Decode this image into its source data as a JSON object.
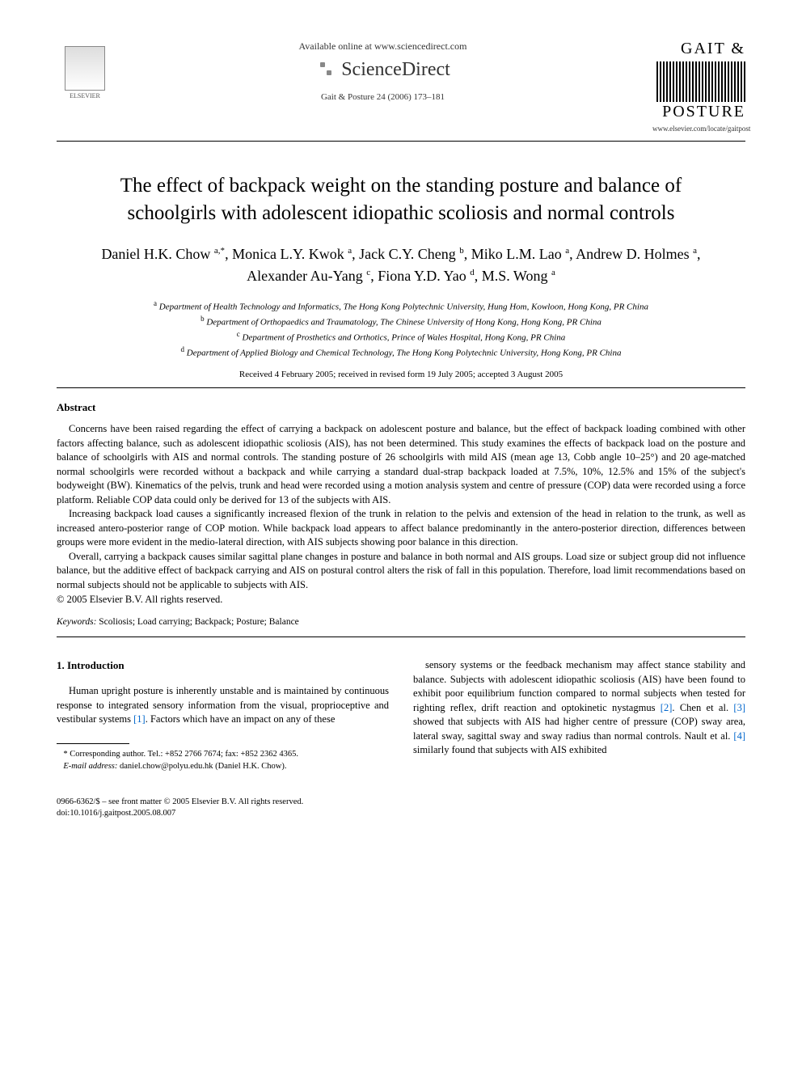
{
  "header": {
    "available_online": "Available online at www.sciencedirect.com",
    "sciencedirect": "ScienceDirect",
    "journal_ref": "Gait & Posture 24 (2006) 173–181",
    "elsevier_label": "ELSEVIER",
    "journal_logo_line1": "GAIT &",
    "journal_logo_line2": "POSTURE",
    "journal_url": "www.elsevier.com/locate/gaitpost"
  },
  "title": "The effect of backpack weight on the standing posture and balance of schoolgirls with adolescent idiopathic scoliosis and normal controls",
  "authors_html": "Daniel H.K. Chow <sup>a,*</sup>, Monica L.Y. Kwok <sup>a</sup>, Jack C.Y. Cheng <sup>b</sup>, Miko L.M. Lao <sup>a</sup>, Andrew D. Holmes <sup>a</sup>, Alexander Au-Yang <sup>c</sup>, Fiona Y.D. Yao <sup>d</sup>, M.S. Wong <sup>a</sup>",
  "affiliations": {
    "a": "Department of Health Technology and Informatics, The Hong Kong Polytechnic University, Hung Hom, Kowloon, Hong Kong, PR China",
    "b": "Department of Orthopaedics and Traumatology, The Chinese University of Hong Kong, Hong Kong, PR China",
    "c": "Department of Prosthetics and Orthotics, Prince of Wales Hospital, Hong Kong, PR China",
    "d": "Department of Applied Biology and Chemical Technology, The Hong Kong Polytechnic University, Hong Kong, PR China"
  },
  "dates": "Received 4 February 2005; received in revised form 19 July 2005; accepted 3 August 2005",
  "abstract": {
    "heading": "Abstract",
    "p1": "Concerns have been raised regarding the effect of carrying a backpack on adolescent posture and balance, but the effect of backpack loading combined with other factors affecting balance, such as adolescent idiopathic scoliosis (AIS), has not been determined. This study examines the effects of backpack load on the posture and balance of schoolgirls with AIS and normal controls. The standing posture of 26 schoolgirls with mild AIS (mean age 13, Cobb angle 10–25°) and 20 age-matched normal schoolgirls were recorded without a backpack and while carrying a standard dual-strap backpack loaded at 7.5%, 10%, 12.5% and 15% of the subject's bodyweight (BW). Kinematics of the pelvis, trunk and head were recorded using a motion analysis system and centre of pressure (COP) data were recorded using a force platform. Reliable COP data could only be derived for 13 of the subjects with AIS.",
    "p2": "Increasing backpack load causes a significantly increased flexion of the trunk in relation to the pelvis and extension of the head in relation to the trunk, as well as increased antero-posterior range of COP motion. While backpack load appears to affect balance predominantly in the antero-posterior direction, differences between groups were more evident in the medio-lateral direction, with AIS subjects showing poor balance in this direction.",
    "p3": "Overall, carrying a backpack causes similar sagittal plane changes in posture and balance in both normal and AIS groups. Load size or subject group did not influence balance, but the additive effect of backpack carrying and AIS on postural control alters the risk of fall in this population. Therefore, load limit recommendations based on normal subjects should not be applicable to subjects with AIS.",
    "copyright": "© 2005 Elsevier B.V. All rights reserved."
  },
  "keywords": {
    "label": "Keywords:",
    "text": " Scoliosis; Load carrying; Backpack; Posture; Balance"
  },
  "intro": {
    "heading": "1. Introduction",
    "left": "Human upright posture is inherently unstable and is maintained by continuous response to integrated sensory information from the visual, proprioceptive and vestibular systems [1]. Factors which have an impact on any of these",
    "right": "sensory systems or the feedback mechanism may affect stance stability and balance. Subjects with adolescent idiopathic scoliosis (AIS) have been found to exhibit poor equilibrium function compared to normal subjects when tested for righting reflex, drift reaction and optokinetic nystagmus [2]. Chen et al. [3] showed that subjects with AIS had higher centre of pressure (COP) sway area, lateral sway, sagittal sway and sway radius than normal controls. Nault et al. [4] similarly found that subjects with AIS exhibited"
  },
  "footnote": {
    "corr": "* Corresponding author. Tel.: +852 2766 7674; fax: +852 2362 4365.",
    "email_label": "E-mail address:",
    "email": " daniel.chow@polyu.edu.hk (Daniel H.K. Chow)."
  },
  "bottom": {
    "line1": "0966-6362/$ – see front matter © 2005 Elsevier B.V. All rights reserved.",
    "line2": "doi:10.1016/j.gaitpost.2005.08.007"
  },
  "refs": {
    "r1": "[1]",
    "r2": "[2]",
    "r3": "[3]",
    "r4": "[4]"
  }
}
